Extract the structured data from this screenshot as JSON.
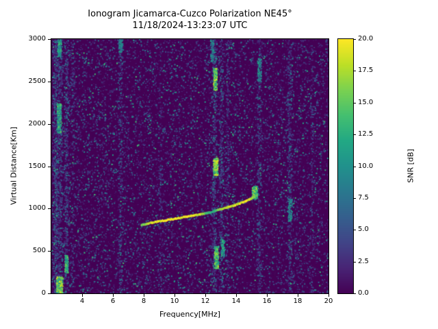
{
  "chart_data": {
    "type": "heatmap",
    "title": "Ionogram Jicamarca-Cuzco Polarization NE45°",
    "subtitle": "11/18/2024-13:23:07 UTC",
    "xlabel": "Frequency[MHz]",
    "ylabel": "Virtual Distance[Km]",
    "xlim": [
      2,
      20
    ],
    "ylim": [
      0,
      3000
    ],
    "xticks": [
      4,
      6,
      8,
      10,
      12,
      14,
      16,
      18,
      20
    ],
    "yticks": [
      0,
      500,
      1000,
      1500,
      2000,
      2500,
      3000
    ],
    "grid": false,
    "legend": "none",
    "colorbar": {
      "label": "SNR [dB]",
      "min": 0,
      "max": 20,
      "ticks": [
        0,
        2.5,
        5,
        7.5,
        10,
        12.5,
        15,
        17.5,
        20
      ],
      "colormap": "viridis",
      "stops": [
        [
          0.0,
          "#440154"
        ],
        [
          0.1,
          "#482475"
        ],
        [
          0.2,
          "#414487"
        ],
        [
          0.3,
          "#355f8d"
        ],
        [
          0.4,
          "#2a788e"
        ],
        [
          0.5,
          "#21918c"
        ],
        [
          0.6,
          "#22a884"
        ],
        [
          0.7,
          "#44bf70"
        ],
        [
          0.8,
          "#7ad151"
        ],
        [
          0.9,
          "#bddf26"
        ],
        [
          1.0,
          "#fde725"
        ]
      ]
    },
    "background_snr": 0,
    "noise": {
      "seed": 1337,
      "speckle_count": 15000,
      "bright_speckle_count": 900
    },
    "echo_trace": {
      "description": "ionospheric echo trace (frequency MHz, virtual distance km, SNR dB)",
      "points": [
        [
          7.8,
          805,
          15
        ],
        [
          8.2,
          822,
          18
        ],
        [
          8.8,
          845,
          19
        ],
        [
          9.4,
          862,
          20
        ],
        [
          10.0,
          880,
          20
        ],
        [
          10.6,
          900,
          19
        ],
        [
          11.2,
          918,
          20
        ],
        [
          11.8,
          938,
          17
        ],
        [
          12.2,
          952,
          12
        ],
        [
          12.6,
          972,
          14
        ],
        [
          13.0,
          995,
          17
        ],
        [
          13.4,
          1015,
          19
        ],
        [
          13.8,
          1035,
          18
        ],
        [
          14.2,
          1060,
          19
        ],
        [
          14.6,
          1090,
          20
        ],
        [
          15.0,
          1122,
          18
        ],
        [
          15.25,
          1152,
          15
        ]
      ]
    },
    "interference_bands": [
      {
        "freq": 2.25,
        "width": 0.12,
        "count": 650,
        "vmax": 13
      },
      {
        "freq": 2.55,
        "width": 0.1,
        "count": 380,
        "vmax": 11
      },
      {
        "freq": 2.95,
        "width": 0.1,
        "count": 320,
        "vmax": 11
      },
      {
        "freq": 3.35,
        "width": 0.08,
        "count": 140,
        "vmax": 8
      },
      {
        "freq": 6.45,
        "width": 0.09,
        "count": 230,
        "vmax": 9
      },
      {
        "freq": 9.05,
        "width": 0.07,
        "count": 110,
        "vmax": 7
      },
      {
        "freq": 12.55,
        "width": 0.1,
        "count": 420,
        "vmax": 12
      },
      {
        "freq": 13.0,
        "width": 0.09,
        "count": 300,
        "vmax": 11
      },
      {
        "freq": 13.4,
        "width": 0.07,
        "count": 150,
        "vmax": 8
      },
      {
        "freq": 15.45,
        "width": 0.09,
        "count": 240,
        "vmax": 10
      },
      {
        "freq": 17.45,
        "width": 0.09,
        "count": 260,
        "vmax": 10
      },
      {
        "freq": 18.9,
        "width": 0.07,
        "count": 110,
        "vmax": 7
      }
    ],
    "hot_clusters": [
      {
        "f": [
          2.35,
          2.6
        ],
        "km": [
          1900,
          2250
        ],
        "count": 160,
        "snr": [
          8,
          16
        ]
      },
      {
        "f": [
          2.3,
          2.7
        ],
        "km": [
          0,
          200
        ],
        "count": 200,
        "snr": [
          10,
          20
        ]
      },
      {
        "f": [
          2.85,
          3.05
        ],
        "km": [
          250,
          450
        ],
        "count": 130,
        "snr": [
          8,
          16
        ]
      },
      {
        "f": [
          2.4,
          2.6
        ],
        "km": [
          2800,
          3000
        ],
        "count": 80,
        "snr": [
          8,
          14
        ]
      },
      {
        "f": [
          6.35,
          6.6
        ],
        "km": [
          2850,
          3000
        ],
        "count": 60,
        "snr": [
          6,
          12
        ]
      },
      {
        "f": [
          12.5,
          12.72
        ],
        "km": [
          2400,
          2660
        ],
        "count": 170,
        "snr": [
          10,
          20
        ]
      },
      {
        "f": [
          12.5,
          12.78
        ],
        "km": [
          1400,
          1600
        ],
        "count": 170,
        "snr": [
          12,
          20
        ]
      },
      {
        "f": [
          12.55,
          12.82
        ],
        "km": [
          300,
          560
        ],
        "count": 160,
        "snr": [
          10,
          18
        ]
      },
      {
        "f": [
          13.0,
          13.2
        ],
        "km": [
          440,
          660
        ],
        "count": 80,
        "snr": [
          8,
          14
        ]
      },
      {
        "f": [
          12.3,
          12.5
        ],
        "km": [
          2740,
          3000
        ],
        "count": 70,
        "snr": [
          6,
          12
        ]
      },
      {
        "f": [
          15.35,
          15.6
        ],
        "km": [
          2500,
          2780
        ],
        "count": 60,
        "snr": [
          6,
          12
        ]
      },
      {
        "f": [
          15.0,
          15.35
        ],
        "km": [
          1120,
          1270
        ],
        "count": 130,
        "snr": [
          10,
          18
        ]
      },
      {
        "f": [
          17.35,
          17.6
        ],
        "km": [
          850,
          1120
        ],
        "count": 80,
        "snr": [
          6,
          12
        ]
      }
    ]
  }
}
